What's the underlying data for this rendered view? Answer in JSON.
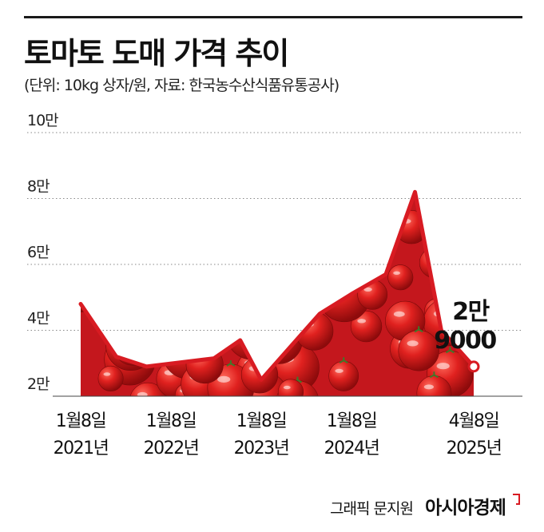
{
  "header": {
    "title": "토마토 도매 가격 추이",
    "subtitle": "(단위: 10kg 상자/원, 자료: 한국농수산식품유통공사)"
  },
  "chart_data": {
    "type": "area",
    "y_ticks": [
      {
        "value": 20000,
        "label": "2만"
      },
      {
        "value": 40000,
        "label": "4만"
      },
      {
        "value": 60000,
        "label": "6만"
      },
      {
        "value": 80000,
        "label": "8만"
      },
      {
        "value": 100000,
        "label": "10만"
      }
    ],
    "ylim": [
      20000,
      100000
    ],
    "grid": "dotted-horizontal",
    "x_ticks": [
      {
        "date": "2021-01-08",
        "label_top": "1월8일",
        "label_bottom": "2021년"
      },
      {
        "date": "2022-01-08",
        "label_top": "1월8일",
        "label_bottom": "2022년"
      },
      {
        "date": "2023-01-08",
        "label_top": "1월8일",
        "label_bottom": "2023년"
      },
      {
        "date": "2024-01-08",
        "label_top": "1월8일",
        "label_bottom": "2024년"
      },
      {
        "date": "2025-04-08",
        "label_top": "4월8일",
        "label_bottom": "2025년"
      }
    ],
    "series": [
      {
        "values": [
          {
            "date": "2021-01-08",
            "value": 48000
          },
          {
            "date": "2021-06-01",
            "value": 32000
          },
          {
            "date": "2021-10-01",
            "value": 29000
          },
          {
            "date": "2022-07-01",
            "value": 31500
          },
          {
            "date": "2022-10-15",
            "value": 37000
          },
          {
            "date": "2023-01-08",
            "value": 25000
          },
          {
            "date": "2023-09-01",
            "value": 45000
          },
          {
            "date": "2024-01-08",
            "value": 51000
          },
          {
            "date": "2024-05-15",
            "value": 57000
          },
          {
            "date": "2024-09-01",
            "value": 82000
          },
          {
            "date": "2024-12-08",
            "value": 40000
          },
          {
            "date": "2025-04-08",
            "value": 29000
          }
        ]
      }
    ],
    "annotation": {
      "date": "2025-04-08",
      "value": 29000,
      "line1": "2만",
      "line2": "9000"
    },
    "colors": {
      "line": "#d81b22",
      "fill": "#c4171d",
      "marker_fill": "#ffffff"
    }
  },
  "footer": {
    "credit": "그래픽 문지원",
    "brand": "아시아경제"
  }
}
